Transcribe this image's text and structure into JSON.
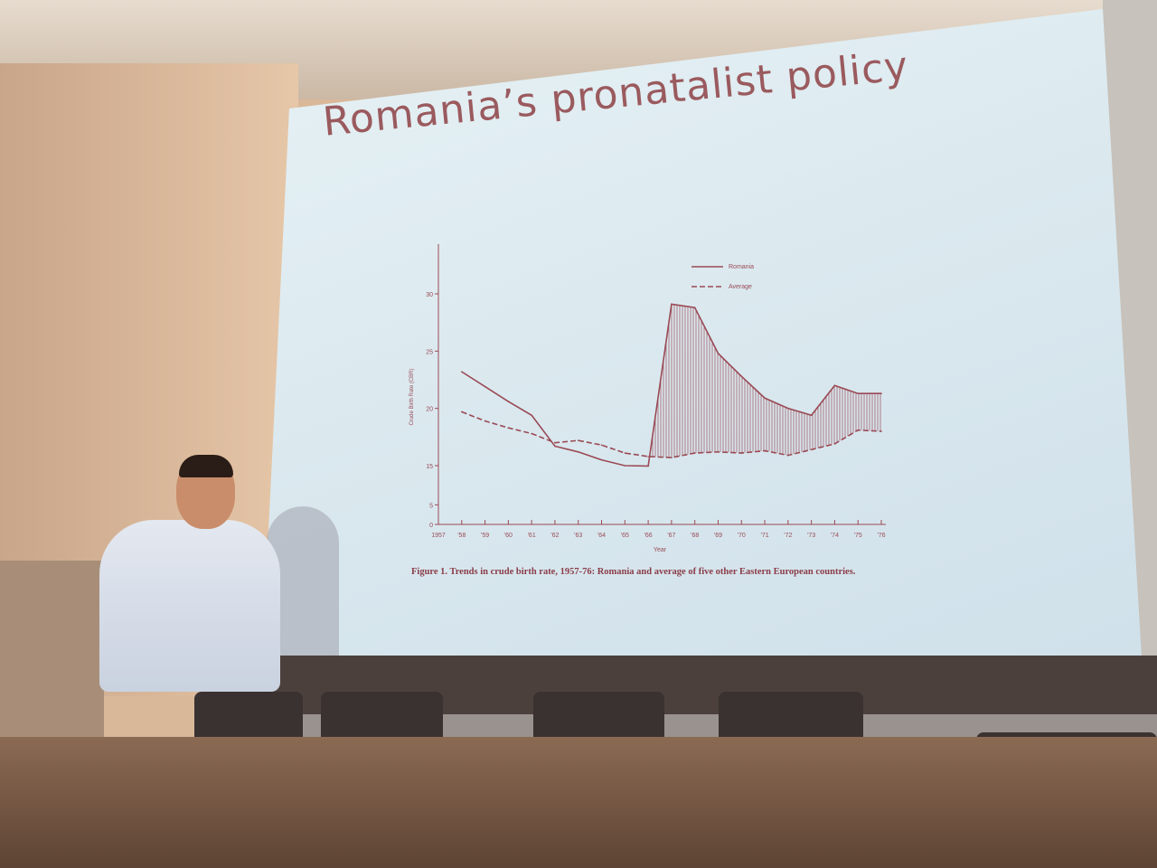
{
  "slide": {
    "title": "Romania’s pronatalist policy",
    "caption": "Figure 1. Trends in crude birth rate, 1957-76: Romania and average of five other Eastern European countries."
  },
  "chart_data": {
    "type": "line",
    "title": "",
    "xlabel": "Year",
    "ylabel": "Crude Birth Rate (CBR)",
    "x_tick_labels": [
      "1957",
      "'58",
      "'59",
      "'60",
      "'61",
      "'62",
      "'63",
      "'64",
      "'65",
      "'66",
      "'67",
      "'68",
      "'69",
      "'70",
      "'71",
      "'72",
      "'73",
      "'74",
      "'75",
      "'76"
    ],
    "y_tick_labels": [
      "0",
      "5",
      "15",
      "20",
      "25",
      "30"
    ],
    "ylim": [
      0,
      33
    ],
    "y_axis_broken": true,
    "legend_placement": "top-right",
    "shading": "hatched area between Romania and Average, 1966-1976",
    "x": [
      1958,
      1959,
      1960,
      1961,
      1962,
      1963,
      1964,
      1965,
      1966,
      1967,
      1968,
      1969,
      1970,
      1971,
      1972,
      1973,
      1974,
      1975,
      1976
    ],
    "series": [
      {
        "name": "Romania",
        "style": "solid",
        "values": [
          23.2,
          21.9,
          20.6,
          19.4,
          16.7,
          16.2,
          15.5,
          15.0,
          14.9,
          29.1,
          28.8,
          24.8,
          22.8,
          20.9,
          20.0,
          19.4,
          22.0,
          21.3,
          21.3
        ]
      },
      {
        "name": "Average",
        "style": "dashed",
        "values": [
          19.7,
          18.9,
          18.3,
          17.8,
          17.0,
          17.2,
          16.8,
          16.1,
          15.8,
          15.7,
          16.1,
          16.2,
          16.1,
          16.3,
          15.9,
          16.4,
          16.9,
          18.1,
          18.0
        ]
      }
    ],
    "line_color": "#9a4a55"
  }
}
